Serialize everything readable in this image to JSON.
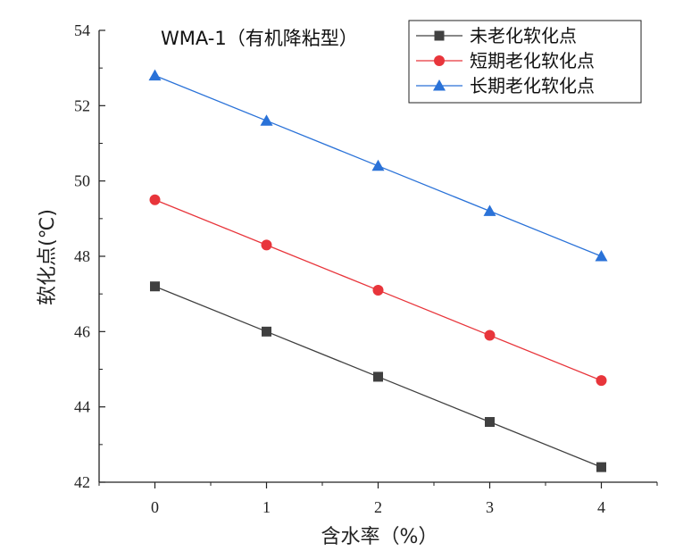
{
  "chart_data": {
    "type": "line",
    "title": "WMA-1（有机降粘型）",
    "xlabel": "含水率（%）",
    "ylabel": "软化点(℃)",
    "x": [
      0,
      1,
      2,
      3,
      4
    ],
    "xlim": [
      -0.5,
      4.5
    ],
    "ylim": [
      42,
      54
    ],
    "xticks": [
      0,
      1,
      2,
      3,
      4
    ],
    "yticks": [
      42,
      44,
      46,
      48,
      50,
      52,
      54
    ],
    "grid": false,
    "legend_position": "top-right",
    "series": [
      {
        "name": "未老化软化点",
        "values": [
          47.2,
          46.0,
          44.8,
          43.6,
          42.4
        ],
        "color": "#404040",
        "marker": "square"
      },
      {
        "name": "短期老化软化点",
        "values": [
          49.5,
          48.3,
          47.1,
          45.9,
          44.7
        ],
        "color": "#e8353b",
        "marker": "circle"
      },
      {
        "name": "长期老化软化点",
        "values": [
          52.8,
          51.6,
          50.4,
          49.2,
          48.0
        ],
        "color": "#2a72d8",
        "marker": "triangle"
      }
    ]
  }
}
